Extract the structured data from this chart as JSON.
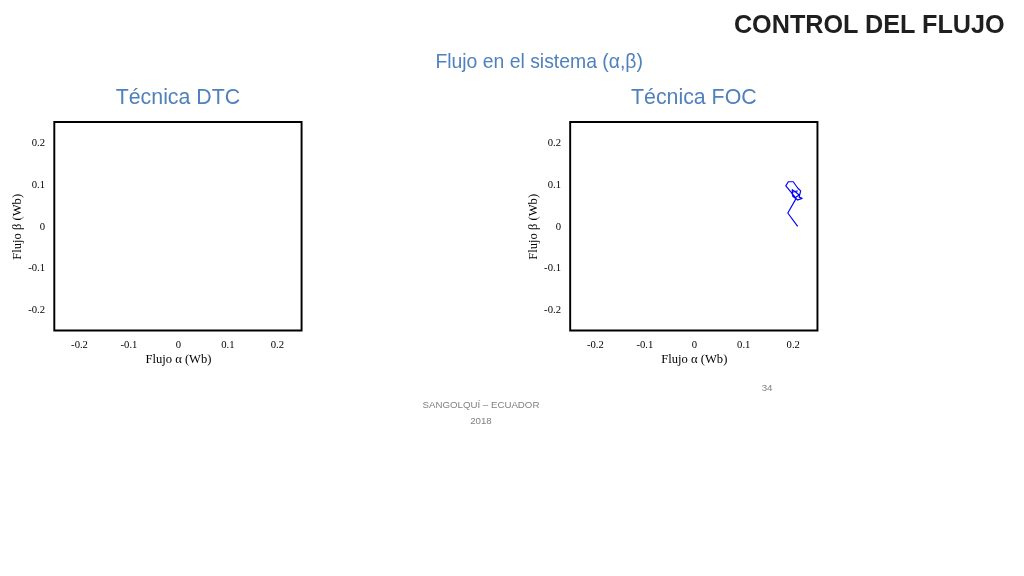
{
  "chart_data": [
    {
      "type": "line",
      "title": "Técnica DTC",
      "xlabel": "Flujo α (Wb)",
      "ylabel": "Flujo β (Wb)",
      "xlim": [
        -0.25,
        0.25
      ],
      "ylim": [
        -0.25,
        0.25
      ],
      "xticks": [
        -0.2,
        -0.1,
        0,
        0.1,
        0.2
      ],
      "yticks": [
        -0.2,
        -0.1,
        0,
        0.1,
        0.2
      ],
      "grid": false,
      "annotations": [
        "CONTROL DEL FLUJO",
        "Flujo en el sistema (α,β)"
      ]
    },
    {
      "type": "line",
      "title": "Técnica FOC",
      "xlabel": "Flujo α (Wb)",
      "ylabel": "Flujo β (Wb)",
      "xlim": [
        -0.25,
        0.25
      ],
      "ylim": [
        -0.25,
        0.25
      ],
      "xticks": [
        -0.2,
        -0.1,
        0,
        0.1,
        0.2
      ],
      "yticks": [
        -0.2,
        -0.1,
        0,
        0.1,
        0.2
      ],
      "grid": false,
      "series": [
        {
          "color": "#0000ff",
          "x": [
            0.21,
            0.19,
            0.207,
            0.186,
            0.191,
            0.201,
            0.21,
            0.216,
            0.213,
            0.219,
            0.21,
            0.2,
            0.199,
            0.207,
            0.213,
            0.204,
            0.197,
            0.21
          ],
          "values": [
            0.0,
            0.032,
            0.067,
            0.097,
            0.107,
            0.107,
            0.092,
            0.085,
            0.07,
            0.067,
            0.063,
            0.072,
            0.088,
            0.081,
            0.075,
            0.068,
            0.081,
            0.085
          ]
        }
      ],
      "annotations": [
        "SANGOLQUÍ – ECUADOR",
        "2018",
        "34"
      ]
    }
  ]
}
